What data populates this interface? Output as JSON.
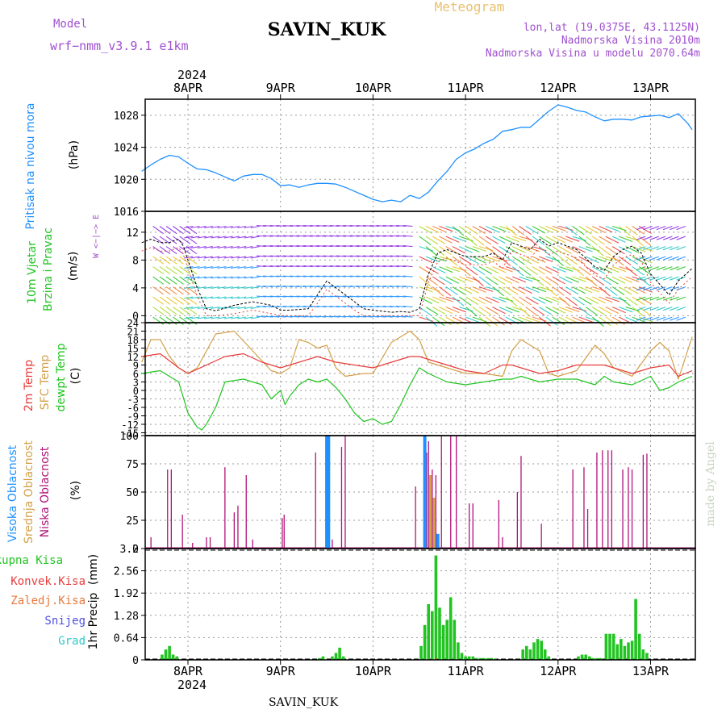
{
  "header": {
    "model_label": "Model",
    "model_name": "wrf−nmm_v3.9.1  e1km",
    "station_title": "SAVIN_KUK",
    "meteogram_label": "Meteogram",
    "lonlat": "lon,lat (19.0375E, 43.1125N)",
    "altitude": "Nadmorska Visina 2010m",
    "model_altitude": "Nadmorska Visina u modelu 2070.64m",
    "watermark": "made by Angel",
    "footer_station": "SAVIN_KUK",
    "year_top": "2024",
    "year_bottom": "2024"
  },
  "colors": {
    "pressure": "#1e90ff",
    "temp2m": "#e83c3c",
    "sfc_temp": "#d4a04a",
    "dewpoint": "#22c422",
    "cloud_high": "#1e90ff",
    "cloud_mid": "#d4a04a",
    "cloud_low": "#b0147a",
    "precip": "#22c422",
    "label_purple": "#a050d0",
    "label_gold": "#e8c070"
  },
  "chart_data": [
    {
      "type": "line",
      "name": "pressure",
      "ylabel_1": "Pritisak na nivou mora",
      "ylabel_2": "(hPa)",
      "ylim": [
        1016,
        1030
      ],
      "yticks": [
        1016,
        1020,
        1024,
        1028
      ],
      "x_day_labels": [
        "8APR",
        "9APR",
        "10APR",
        "11APR",
        "12APR",
        "13APR"
      ],
      "x": [
        -0.5,
        -0.4,
        -0.3,
        -0.2,
        -0.1,
        0.0,
        0.1,
        0.2,
        0.3,
        0.4,
        0.5,
        0.6,
        0.7,
        0.8,
        0.9,
        1.0,
        1.1,
        1.2,
        1.3,
        1.4,
        1.5,
        1.6,
        1.7,
        1.8,
        1.9,
        2.0,
        2.1,
        2.2,
        2.3,
        2.4,
        2.5,
        2.6,
        2.7,
        2.8,
        2.9,
        3.0,
        3.1,
        3.2,
        3.3,
        3.4,
        3.5,
        3.6,
        3.7,
        3.8,
        3.9,
        4.0,
        4.1,
        4.2,
        4.3,
        4.4,
        4.5,
        4.6,
        4.7,
        4.8,
        4.9,
        5.0,
        5.1,
        5.2,
        5.3,
        5.4,
        5.45
      ],
      "y": [
        1021.0,
        1021.8,
        1022.5,
        1023.0,
        1022.8,
        1022.0,
        1021.3,
        1021.2,
        1020.8,
        1020.3,
        1019.8,
        1020.4,
        1020.6,
        1020.6,
        1020.1,
        1019.2,
        1019.3,
        1019.0,
        1019.3,
        1019.5,
        1019.5,
        1019.4,
        1019.0,
        1018.5,
        1018.0,
        1017.5,
        1017.2,
        1017.4,
        1017.2,
        1018.0,
        1017.6,
        1018.4,
        1019.8,
        1021.0,
        1022.5,
        1023.3,
        1023.8,
        1024.5,
        1025.0,
        1026.0,
        1026.2,
        1026.5,
        1026.5,
        1027.5,
        1028.5,
        1029.3,
        1029.0,
        1028.6,
        1028.4,
        1027.8,
        1027.3,
        1027.5,
        1027.5,
        1027.4,
        1027.8,
        1027.9,
        1028.0,
        1027.7,
        1028.2,
        1027.0,
        1026.2
      ]
    },
    {
      "type": "line",
      "name": "wind",
      "ylabel_1": "10m Vjetar",
      "ylabel_2": "Brzina i Pravac",
      "ylabel_3": "(m/s)",
      "compass": "W <−|−> E",
      "ylim": [
        -1,
        15
      ],
      "yticks": [
        0,
        4,
        8,
        12
      ],
      "series": [
        {
          "name": "speed",
          "x": [
            -0.5,
            -0.4,
            -0.3,
            -0.2,
            -0.15,
            -0.1,
            -0.05,
            0.0,
            0.1,
            0.2,
            0.3,
            0.5,
            0.7,
            0.9,
            1.0,
            1.1,
            1.3,
            1.4,
            1.5,
            1.6,
            1.7,
            1.8,
            1.9,
            2.0,
            2.2,
            2.3,
            2.4,
            2.5,
            2.6,
            2.7,
            2.8,
            2.9,
            3.0,
            3.2,
            3.3,
            3.4,
            3.5,
            3.6,
            3.7,
            3.8,
            3.9,
            4.0,
            4.2,
            4.4,
            4.5,
            4.6,
            4.7,
            4.8,
            4.9,
            5.0,
            5.2,
            5.3,
            5.45
          ],
          "y": [
            10.5,
            11.0,
            10.5,
            10.5,
            10.8,
            11.0,
            10.0,
            8.0,
            4.0,
            1.0,
            0.7,
            1.5,
            2.0,
            1.5,
            0.8,
            0.8,
            1.0,
            3.0,
            5.0,
            4.0,
            3.0,
            2.0,
            1.0,
            0.8,
            0.5,
            0.6,
            0.5,
            1.0,
            6.0,
            9.0,
            9.5,
            9.0,
            8.5,
            8.5,
            9.0,
            8.0,
            10.5,
            10.0,
            9.5,
            11.0,
            10.0,
            10.5,
            9.5,
            7.0,
            6.5,
            8.5,
            9.5,
            10.0,
            9.0,
            6.0,
            3.0,
            5.0,
            6.8
          ]
        },
        {
          "name": "arrows",
          "x": [],
          "y": []
        }
      ]
    },
    {
      "type": "line",
      "name": "temperature",
      "ylabel_1": "2m Temp",
      "ylabel_2": "SFC Temp",
      "ylabel_3": "dewpt Temp",
      "ylabel_4": "(C)",
      "ylim": [
        -16,
        24
      ],
      "yticks": [
        -15,
        -12,
        -9,
        -6,
        -3,
        0,
        3,
        6,
        9,
        12,
        15,
        18,
        21,
        24
      ],
      "series": [
        {
          "name": "2m Temp",
          "x": [
            -0.5,
            -0.3,
            -0.1,
            0.0,
            0.2,
            0.4,
            0.6,
            0.8,
            1.0,
            1.2,
            1.4,
            1.5,
            1.6,
            1.8,
            2.0,
            2.2,
            2.4,
            2.5,
            2.6,
            2.8,
            3.0,
            3.2,
            3.4,
            3.5,
            3.6,
            3.8,
            4.0,
            4.2,
            4.4,
            4.5,
            4.6,
            4.8,
            5.0,
            5.2,
            5.3,
            5.45
          ],
          "y": [
            12,
            13,
            8,
            6,
            9,
            12,
            13,
            10,
            8,
            10,
            12,
            11,
            10,
            9,
            8,
            10,
            12,
            12,
            11,
            9,
            7,
            6,
            9,
            9,
            8,
            6,
            7,
            9,
            9,
            9,
            8,
            6,
            8,
            9,
            5,
            7
          ]
        },
        {
          "name": "SFC Temp",
          "x": [
            -0.5,
            -0.4,
            -0.3,
            -0.2,
            -0.1,
            0.0,
            0.1,
            0.3,
            0.5,
            0.7,
            0.9,
            1.0,
            1.1,
            1.2,
            1.3,
            1.4,
            1.5,
            1.6,
            1.7,
            1.9,
            2.0,
            2.2,
            2.4,
            2.5,
            2.6,
            2.7,
            2.9,
            3.0,
            3.2,
            3.4,
            3.5,
            3.6,
            3.8,
            3.9,
            4.0,
            4.2,
            4.4,
            4.5,
            4.6,
            4.8,
            5.0,
            5.1,
            5.2,
            5.3,
            5.45
          ],
          "y": [
            10,
            18,
            18,
            12,
            8,
            6,
            8,
            20,
            21,
            14,
            7,
            6,
            8,
            18,
            17,
            15,
            16,
            8,
            5,
            6,
            6,
            17,
            21,
            18,
            10,
            9,
            7,
            6,
            6,
            5,
            14,
            18,
            14,
            6,
            5,
            7,
            16,
            13,
            8,
            5,
            14,
            17,
            14,
            4,
            19
          ]
        },
        {
          "name": "dewpt Temp",
          "x": [
            -0.5,
            -0.3,
            -0.1,
            0.0,
            0.1,
            0.15,
            0.2,
            0.3,
            0.4,
            0.6,
            0.8,
            0.9,
            1.0,
            1.05,
            1.1,
            1.2,
            1.3,
            1.4,
            1.5,
            1.6,
            1.7,
            1.8,
            1.9,
            2.0,
            2.1,
            2.2,
            2.3,
            2.4,
            2.5,
            2.6,
            2.8,
            3.0,
            3.2,
            3.4,
            3.5,
            3.6,
            3.8,
            4.0,
            4.2,
            4.4,
            4.5,
            4.6,
            4.8,
            5.0,
            5.1,
            5.2,
            5.3,
            5.45
          ],
          "y": [
            6,
            7,
            3,
            -8,
            -13,
            -14,
            -12,
            -6,
            3,
            4,
            2,
            -3,
            0,
            -5,
            -2,
            2,
            4,
            3,
            4,
            1,
            -3,
            -8,
            -11,
            -10,
            -12,
            -11,
            -5,
            2,
            8,
            6,
            3,
            2,
            3,
            4,
            4,
            5,
            3,
            4,
            4,
            2,
            5,
            3,
            2,
            5,
            0,
            1,
            3,
            5
          ]
        }
      ]
    },
    {
      "type": "bar",
      "name": "cloudiness",
      "ylabel_1": "Visoka Oblacnost",
      "ylabel_2": "Srednja Oblacnost",
      "ylabel_3": "Niska Oblacnost",
      "ylabel_4": "(%)",
      "ylim": [
        0,
        100
      ],
      "yticks": [
        0,
        25,
        50,
        75,
        100
      ],
      "series": [
        {
          "name": "Visoka Oblacnost",
          "x": [
            1.5,
            1.52,
            2.56,
            2.7
          ],
          "values": [
            100,
            100,
            100,
            13
          ]
        },
        {
          "name": "Srednja Oblacnost",
          "x": [
            2.62,
            2.66
          ],
          "values": [
            65,
            45
          ]
        },
        {
          "name": "Niska Oblacnost",
          "x": [
            -0.4,
            -0.22,
            -0.18,
            -0.06,
            0.05,
            0.2,
            0.24,
            0.4,
            0.5,
            0.54,
            0.63,
            0.7,
            1.02,
            1.04,
            1.38,
            1.56,
            1.66,
            1.7,
            2.46,
            2.58,
            2.6,
            2.64,
            2.68,
            2.74,
            2.84,
            2.9,
            3.04,
            3.08,
            3.36,
            3.4,
            3.56,
            3.6,
            3.82,
            4.16,
            4.28,
            4.32,
            4.42,
            4.48,
            4.54,
            4.58,
            4.7,
            4.76,
            4.8,
            4.92,
            4.96
          ],
          "values": [
            10,
            70,
            70,
            30,
            5,
            10,
            10,
            72,
            32,
            38,
            65,
            8,
            27,
            30,
            85,
            8,
            90,
            100,
            55,
            85,
            95,
            70,
            65,
            100,
            100,
            100,
            40,
            40,
            43,
            10,
            50,
            82,
            22,
            70,
            72,
            35,
            85,
            87,
            87,
            87,
            70,
            72,
            70,
            83,
            84
          ]
        }
      ]
    },
    {
      "type": "bar",
      "name": "precipitation",
      "ylabel_1": "1hr Precip",
      "ylabel_2": "(mm)",
      "legend": [
        "Ukupna Kisa",
        "Konvek.Kisa",
        "Zaledj.Kisa",
        "Snijeg",
        "Grad"
      ],
      "ylim": [
        0,
        3.2
      ],
      "yticks": [
        0,
        0.64,
        1.28,
        1.92,
        2.56,
        3.2
      ],
      "series": [
        {
          "name": "Ukupna Kisa",
          "x": [
            -0.28,
            -0.24,
            -0.2,
            -0.16,
            -0.12,
            1.42,
            1.46,
            1.56,
            1.6,
            1.64,
            1.68,
            2.52,
            2.56,
            2.6,
            2.64,
            2.68,
            2.72,
            2.76,
            2.8,
            2.84,
            2.88,
            2.92,
            2.96,
            3.0,
            3.04,
            3.08,
            3.12,
            3.16,
            3.2,
            3.24,
            3.28,
            3.32,
            3.62,
            3.66,
            3.7,
            3.74,
            3.78,
            3.82,
            3.86,
            3.9,
            4.22,
            4.26,
            4.3,
            4.34,
            4.38,
            4.42,
            4.46,
            4.52,
            4.56,
            4.6,
            4.64,
            4.68,
            4.72,
            4.76,
            4.8,
            4.84,
            4.88,
            4.92,
            4.96
          ],
          "values": [
            0.15,
            0.3,
            0.4,
            0.15,
            0.1,
            0.05,
            0.1,
            0.1,
            0.2,
            0.35,
            0.1,
            0.4,
            1.0,
            1.6,
            1.4,
            3.0,
            1.5,
            1.0,
            1.15,
            1.8,
            1.15,
            0.5,
            0.2,
            0.1,
            0.1,
            0.1,
            0.05,
            0.05,
            0.05,
            0.05,
            0.05,
            0.03,
            0.3,
            0.4,
            0.3,
            0.5,
            0.6,
            0.55,
            0.3,
            0.1,
            0.1,
            0.15,
            0.15,
            0.1,
            0.05,
            0.05,
            0.05,
            0.75,
            0.75,
            0.75,
            0.45,
            0.6,
            0.4,
            0.5,
            0.55,
            1.75,
            0.75,
            0.3,
            0.2
          ]
        },
        {
          "name": "Konvek.Kisa",
          "x": [
            2.68
          ],
          "values": [
            0.05
          ]
        }
      ]
    }
  ]
}
